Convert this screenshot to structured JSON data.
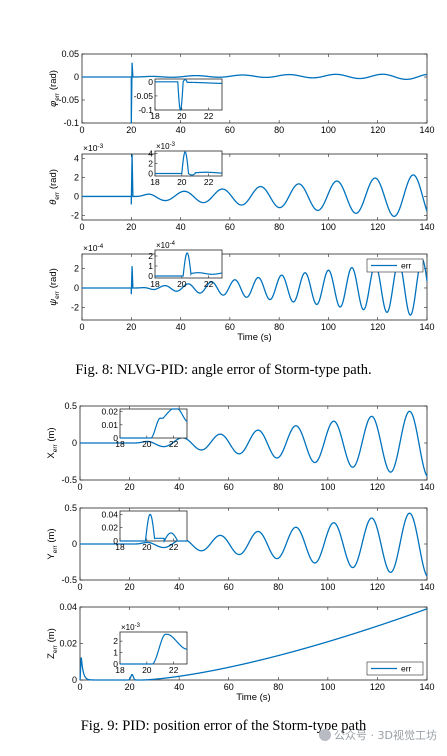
{
  "captions": {
    "fig8": "Fig. 8: NLVG-PID: angle error of Storm-type path.",
    "fig9": "Fig. 9: PID: position error of the Storm-type path"
  },
  "watermark": "公众号 · 3D视觉工坊",
  "colors": {
    "line": "#0072BD",
    "axis": "#262626"
  },
  "chart_data": [
    {
      "type": "line",
      "id": "phi",
      "figure": "Fig. 8",
      "ylabel": "φ_err (rad)",
      "xlabel": "",
      "xlim": [
        0,
        140
      ],
      "ylim": [
        -0.1,
        0.05
      ],
      "xticks": [
        "0",
        "20",
        "40",
        "60",
        "80",
        "100",
        "120",
        "140"
      ],
      "yticks": [
        "0.05",
        "0",
        "-0.05",
        "-0.1"
      ],
      "series": [
        {
          "name": "err",
          "signal": {
            "base": 0,
            "spike_down": -0.1,
            "spike_up": 0.03,
            "osc_amp_start": 0.001,
            "osc_amp_end": 0.006,
            "osc_period": 19,
            "drift_end": 0.002
          }
        }
      ],
      "inset": {
        "xlim": [
          18,
          23
        ],
        "ylim": [
          -0.1,
          0.01
        ],
        "xticks": [
          "18",
          "20",
          "22"
        ],
        "yticks": [
          "0",
          "-0.05",
          "-0.1"
        ]
      }
    },
    {
      "type": "line",
      "id": "theta",
      "figure": "Fig. 8",
      "ylabel": "θ_err (rad)",
      "exponent": "×10-3",
      "xlabel": "",
      "xlim": [
        0,
        140
      ],
      "ylim": [
        -2.5,
        4.5
      ],
      "xticks": [
        "0",
        "20",
        "40",
        "60",
        "80",
        "100",
        "120",
        "140"
      ],
      "yticks": [
        "4",
        "2",
        "0",
        "-2"
      ],
      "series": [
        {
          "name": "err",
          "signal": {
            "base": 0,
            "spike_up": 4.4,
            "spike_down": -0.8,
            "osc_amp_start": 0.3,
            "osc_amp_end": 2.4,
            "osc_period": 15.5
          }
        }
      ],
      "inset": {
        "exponent": "×10-3",
        "xlim": [
          18,
          23
        ],
        "ylim": [
          -0.5,
          4.5
        ],
        "xticks": [
          "18",
          "20",
          "22"
        ],
        "yticks": [
          "4",
          "2",
          "0"
        ]
      }
    },
    {
      "type": "line",
      "id": "psi",
      "figure": "Fig. 8",
      "ylabel": "ψ_err (rad)",
      "exponent": "×10-4",
      "xlabel": "Time (s)",
      "xlim": [
        0,
        140
      ],
      "ylim": [
        -3.3,
        3.5
      ],
      "xticks": [
        "0",
        "20",
        "40",
        "60",
        "80",
        "100",
        "120",
        "140"
      ],
      "yticks": [
        "2",
        "0",
        "-2"
      ],
      "legend": {
        "entries": [
          "err"
        ],
        "position": "top-right"
      },
      "series": [
        {
          "name": "err",
          "signal": {
            "base": 0,
            "spike_up": 2.2,
            "spike_down": -0.6,
            "osc_amp_start": 0.05,
            "osc_amp_end": 3.0,
            "osc_period": 9.5
          }
        }
      ],
      "inset": {
        "exponent": "×10-4",
        "xlim": [
          18,
          23
        ],
        "ylim": [
          -0.2,
          2.6
        ],
        "xticks": [
          "18",
          "20",
          "22"
        ],
        "yticks": [
          "2",
          "1",
          "0"
        ]
      }
    },
    {
      "type": "line",
      "id": "x",
      "figure": "Fig. 9",
      "ylabel": "X_err (m)",
      "xlabel": "",
      "xlim": [
        0,
        140
      ],
      "ylim": [
        -0.5,
        0.5
      ],
      "xticks": [
        "0",
        "20",
        "40",
        "60",
        "80",
        "100",
        "120",
        "140"
      ],
      "yticks": [
        "0.5",
        "0",
        "-0.5"
      ],
      "series": [
        {
          "name": "err",
          "signal": {
            "base": 0,
            "osc_amp_start": 0.02,
            "osc_amp_end": 0.46,
            "osc_period": 15.3
          }
        }
      ],
      "inset": {
        "xlim": [
          18,
          23
        ],
        "ylim": [
          0,
          0.022
        ],
        "xticks": [
          "18",
          "20",
          "22"
        ],
        "yticks": [
          "0.02",
          "0.01",
          "0"
        ]
      }
    },
    {
      "type": "line",
      "id": "y",
      "figure": "Fig. 9",
      "ylabel": "Y_err (m)",
      "xlabel": "",
      "xlim": [
        0,
        140
      ],
      "ylim": [
        -0.5,
        0.5
      ],
      "xticks": [
        "0",
        "20",
        "40",
        "60",
        "80",
        "100",
        "120",
        "140"
      ],
      "yticks": [
        "0.5",
        "0",
        "-0.5"
      ],
      "series": [
        {
          "name": "err",
          "signal": {
            "base": 0,
            "osc_amp_start": 0.02,
            "osc_amp_end": 0.46,
            "osc_period": 15.3
          }
        }
      ],
      "inset": {
        "xlim": [
          18,
          23
        ],
        "ylim": [
          0,
          0.045
        ],
        "xticks": [
          "18",
          "20",
          "22"
        ],
        "yticks": [
          "0.04",
          "0.02",
          "0"
        ]
      }
    },
    {
      "type": "line",
      "id": "z",
      "figure": "Fig. 9",
      "ylabel": "Z_err (m)",
      "xlabel": "Time (s)",
      "xlim": [
        0,
        140
      ],
      "ylim": [
        0,
        0.04
      ],
      "xticks": [
        "0",
        "20",
        "40",
        "60",
        "80",
        "100",
        "120",
        "140"
      ],
      "yticks": [
        "0.04",
        "0.02",
        "0"
      ],
      "legend": {
        "entries": [
          "err"
        ],
        "position": "bottom-right"
      },
      "series": [
        {
          "name": "err",
          "signal": {
            "start_peak": 0.025,
            "bump_at": 21,
            "bump": 0.003,
            "end_value": 0.039
          }
        }
      ],
      "inset": {
        "exponent": "×10-3",
        "xlim": [
          18,
          23
        ],
        "ylim": [
          0,
          2.8
        ],
        "xticks": [
          "18",
          "20",
          "22"
        ],
        "yticks": [
          "2",
          "1",
          "0"
        ]
      }
    }
  ]
}
